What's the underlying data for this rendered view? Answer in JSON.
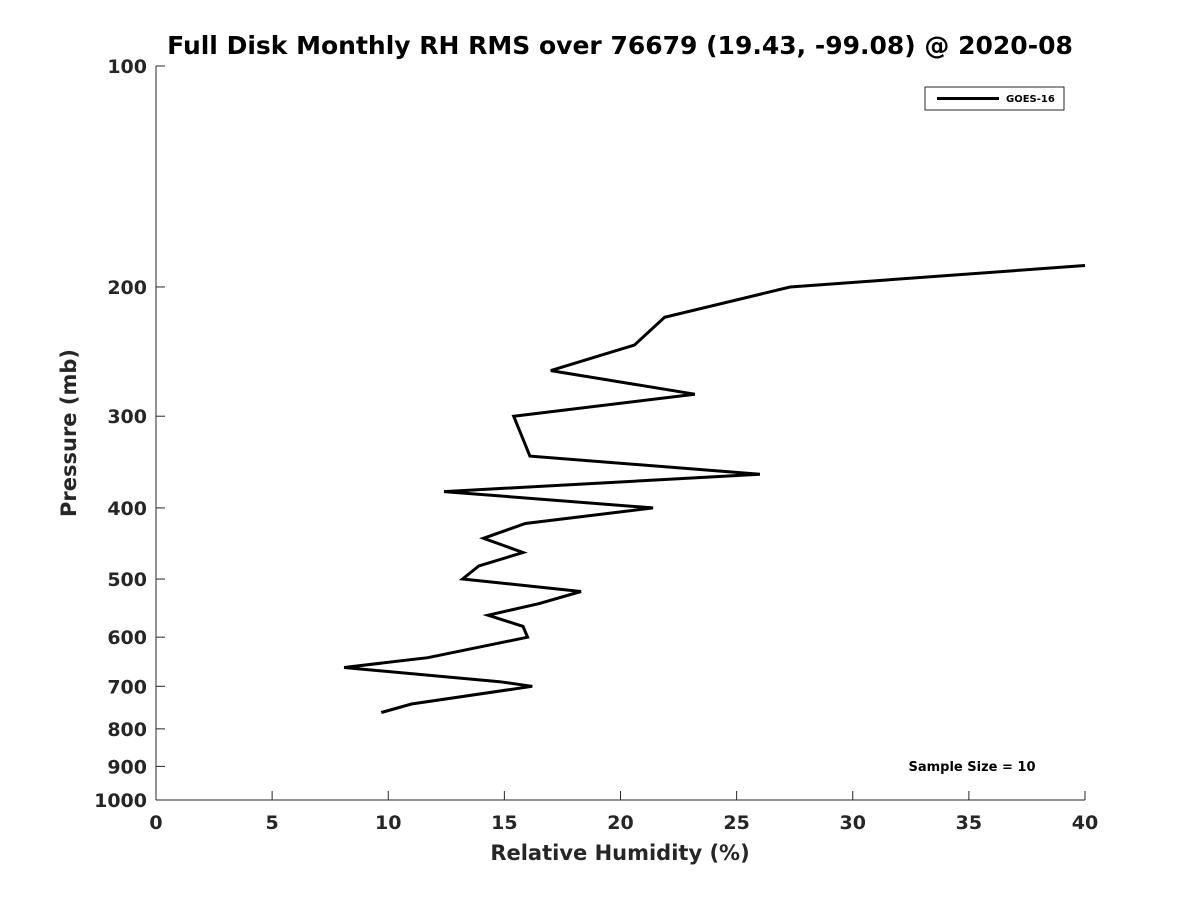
{
  "chart_data": {
    "type": "line",
    "title": "Full Disk Monthly RH RMS over 76679 (19.43, -99.08) @ 2020-08",
    "xlabel": "Relative Humidity (%)",
    "ylabel": "Pressure (mb)",
    "xlim": [
      0,
      40
    ],
    "ylim": [
      100,
      1000
    ],
    "y_scale": "log",
    "y_reversed": true,
    "x_ticks": [
      0,
      5,
      10,
      15,
      20,
      25,
      30,
      35,
      40
    ],
    "y_ticks": [
      100,
      200,
      300,
      400,
      500,
      600,
      700,
      800,
      900,
      1000
    ],
    "grid": false,
    "legend": {
      "position": "top-right",
      "entries": [
        "GOES-16"
      ]
    },
    "annotation": "Sample Size = 10",
    "series": [
      {
        "name": "GOES-16",
        "color": "#000000",
        "points": [
          [
            40.0,
            187
          ],
          [
            27.3,
            200
          ],
          [
            21.9,
            220
          ],
          [
            20.6,
            240
          ],
          [
            17.0,
            260
          ],
          [
            23.2,
            280
          ],
          [
            15.4,
            300
          ],
          [
            16.1,
            340
          ],
          [
            26.0,
            360
          ],
          [
            12.4,
            380
          ],
          [
            21.4,
            400
          ],
          [
            15.9,
            420
          ],
          [
            14.1,
            440
          ],
          [
            15.8,
            460
          ],
          [
            13.9,
            480
          ],
          [
            13.2,
            500
          ],
          [
            18.3,
            520
          ],
          [
            16.5,
            540
          ],
          [
            14.3,
            560
          ],
          [
            15.8,
            580
          ],
          [
            16.0,
            600
          ],
          [
            11.7,
            640
          ],
          [
            8.1,
            660
          ],
          [
            14.8,
            690
          ],
          [
            16.2,
            700
          ],
          [
            11.0,
            740
          ],
          [
            9.7,
            760
          ]
        ]
      }
    ]
  }
}
